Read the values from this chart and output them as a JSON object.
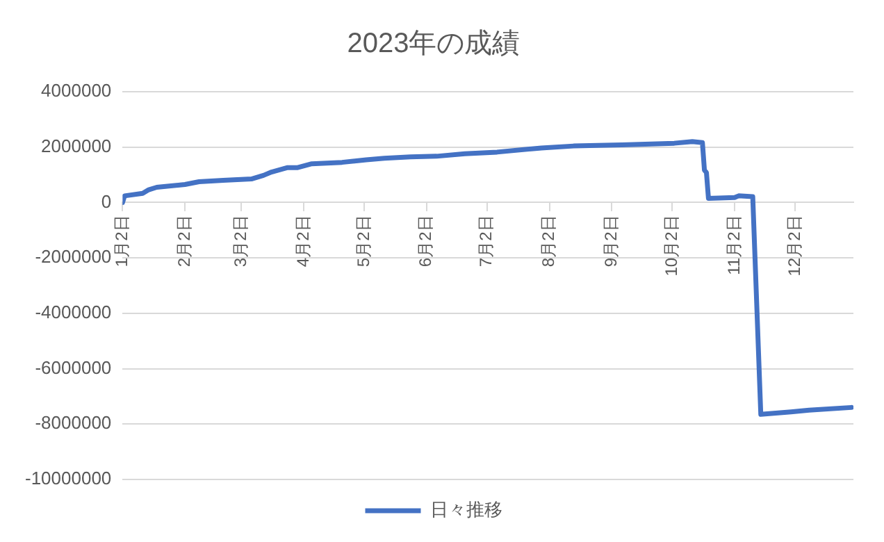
{
  "chart_data": {
    "type": "line",
    "title": "2023年の成績",
    "x": [
      "--01-02",
      "--01-03",
      "--01-12",
      "--01-15",
      "--01-19",
      "--02-02",
      "--02-09",
      "--02-21",
      "--03-07",
      "--03-13",
      "--03-17",
      "--03-25",
      "--03-30",
      "--04-06",
      "--04-21",
      "--05-03",
      "--05-12",
      "--05-25",
      "--06-07",
      "--06-21",
      "--07-07",
      "--07-29",
      "--08-14",
      "--09-07",
      "--10-03",
      "--10-12",
      "--10-17",
      "--10-18",
      "--10-19",
      "--10-20",
      "--11-02",
      "--11-04",
      "--11-11",
      "--11-15",
      "--11-30",
      "--12-09",
      "--12-30"
    ],
    "series": [
      {
        "name": "日々推移",
        "color": "#4472c4",
        "values": [
          0,
          240000,
          330000,
          460000,
          550000,
          650000,
          750000,
          800000,
          850000,
          980000,
          1100000,
          1260000,
          1260000,
          1400000,
          1450000,
          1540000,
          1600000,
          1650000,
          1670000,
          1760000,
          1820000,
          1970000,
          2040000,
          2080000,
          2140000,
          2200000,
          2160000,
          1170000,
          1080000,
          150000,
          180000,
          240000,
          210000,
          -7650000,
          -7560000,
          -7500000,
          -7400000
        ]
      }
    ],
    "xlim": [
      "--01-02",
      "--12-31"
    ],
    "xticks": [
      {
        "value": "--01-02",
        "label": "1月2日"
      },
      {
        "value": "--02-02",
        "label": "2月2日"
      },
      {
        "value": "--03-02",
        "label": "3月2日"
      },
      {
        "value": "--04-02",
        "label": "4月2日"
      },
      {
        "value": "--05-02",
        "label": "5月2日"
      },
      {
        "value": "--06-02",
        "label": "6月2日"
      },
      {
        "value": "--07-02",
        "label": "7月2日"
      },
      {
        "value": "--08-02",
        "label": "8月2日"
      },
      {
        "value": "--09-02",
        "label": "9月2日"
      },
      {
        "value": "--10-02",
        "label": "10月2日"
      },
      {
        "value": "--11-02",
        "label": "11月2日"
      },
      {
        "value": "--12-02",
        "label": "12月2日"
      }
    ],
    "ylim": [
      -10000000,
      4000000
    ],
    "yticks": [
      -10000000,
      -8000000,
      -6000000,
      -4000000,
      -2000000,
      0,
      2000000,
      4000000
    ],
    "grid": "y",
    "legend": "bottom",
    "marker": "none",
    "line_style": "solid"
  }
}
